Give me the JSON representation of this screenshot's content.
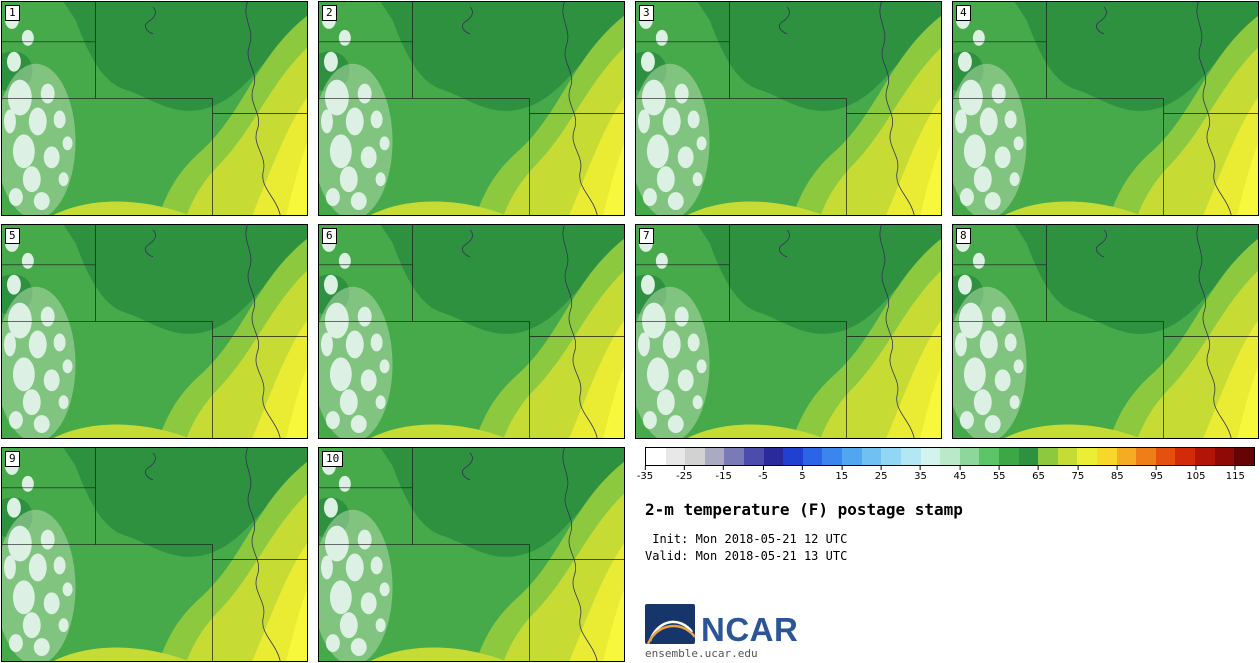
{
  "panels": {
    "labels": [
      "1",
      "2",
      "3",
      "4",
      "5",
      "6",
      "7",
      "8",
      "9",
      "10"
    ]
  },
  "map_colors": {
    "base_green": "#46a94a",
    "dark_green": "#2e9140",
    "light_green": "#8cc93e",
    "yellow_green": "#c6dc34",
    "yellow": "#e9ec33",
    "bright_yellow": "#f7f73c",
    "pale_mountains": "#ddf0e4",
    "pale_halo": "#b9dfb4",
    "state_border": "#1a1a1a",
    "river": "#333355"
  },
  "colorbar": {
    "tick_labels": [
      "-35",
      "-25",
      "-15",
      "-5",
      "5",
      "15",
      "25",
      "35",
      "45",
      "55",
      "65",
      "75",
      "85",
      "95",
      "105",
      "115"
    ],
    "segment_colors": [
      "#ffffff",
      "#e8e8e8",
      "#d2d2d2",
      "#aaaac2",
      "#7a7ab6",
      "#4c4caa",
      "#2a2a9c",
      "#2040d2",
      "#2c64e8",
      "#3b86ee",
      "#52a6f0",
      "#70c1f2",
      "#91d7f4",
      "#b4e7f4",
      "#d4f3ef",
      "#b9e9c9",
      "#8ed79a",
      "#5ec469",
      "#3ba845",
      "#2e9140",
      "#8cc93e",
      "#c6dc34",
      "#ecee35",
      "#f8d62c",
      "#f5ab22",
      "#ef7d18",
      "#e5500f",
      "#d32b0a",
      "#b31408",
      "#8f0a06",
      "#650404"
    ]
  },
  "info": {
    "title": "2-m temperature (F) postage stamp",
    "init_line": " Init: Mon 2018-05-21 12 UTC",
    "valid_line": "Valid: Mon 2018-05-21 13 UTC"
  },
  "branding": {
    "name": "NCAR",
    "url": "ensemble.ucar.edu",
    "logo_blue": "#15356b",
    "logo_arc_white": "#ffffff",
    "logo_arc_orange": "#e8a33c",
    "text_blue": "#2b5597"
  }
}
